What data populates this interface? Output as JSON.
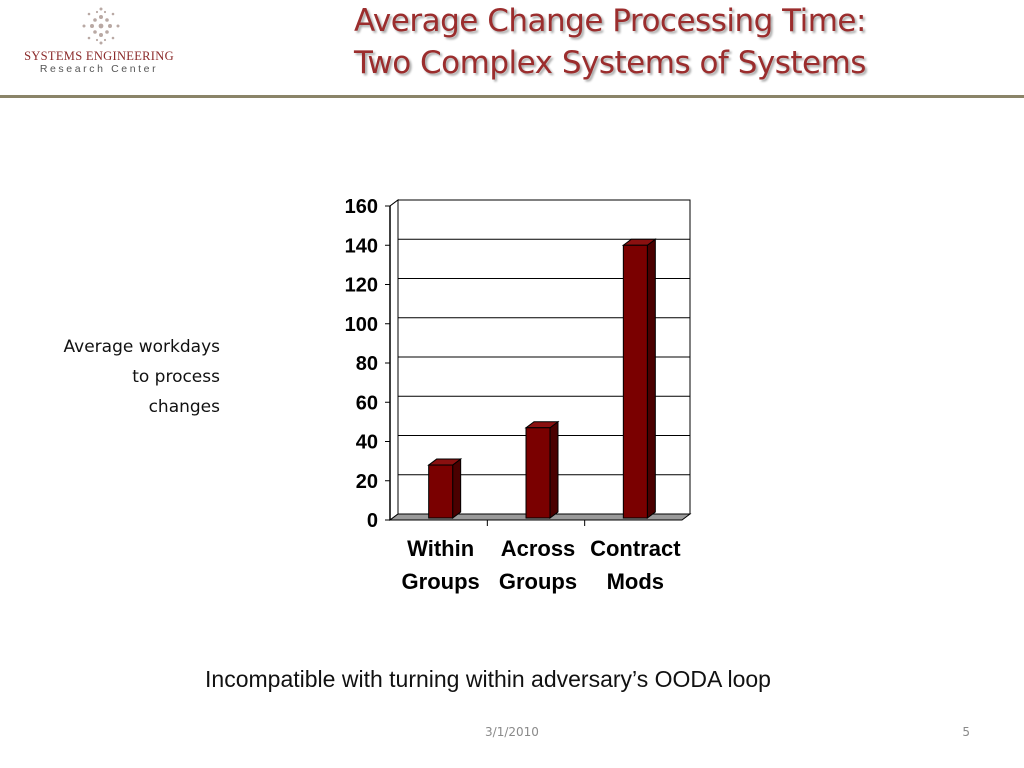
{
  "logo": {
    "line1": "SYSTEMS ENGINEERING",
    "line2": "Research Center",
    "color": "#8b2a2a"
  },
  "title": {
    "line1": "Average Change Processing Time:",
    "line2": "Two Complex Systems of Systems",
    "color": "#9b2d2d"
  },
  "y_label": {
    "line1": "Average workdays",
    "line2": "to process",
    "line3": "changes"
  },
  "chart_data": {
    "type": "bar",
    "style": "3d",
    "categories": [
      [
        "Within",
        "Groups"
      ],
      [
        "Across",
        "Groups"
      ],
      [
        "Contract",
        "Mods"
      ]
    ],
    "values": [
      28,
      47,
      140
    ],
    "yticks": [
      0,
      20,
      40,
      60,
      80,
      100,
      120,
      140,
      160
    ],
    "ylim": [
      0,
      160
    ],
    "grid": true,
    "bar_color": "#7a0000",
    "title": "",
    "xlabel": "",
    "ylabel": "Average workdays to process changes"
  },
  "caption": "Incompatible with turning within adversary’s OODA loop",
  "footer": {
    "date": "3/1/2010",
    "page": "5"
  }
}
